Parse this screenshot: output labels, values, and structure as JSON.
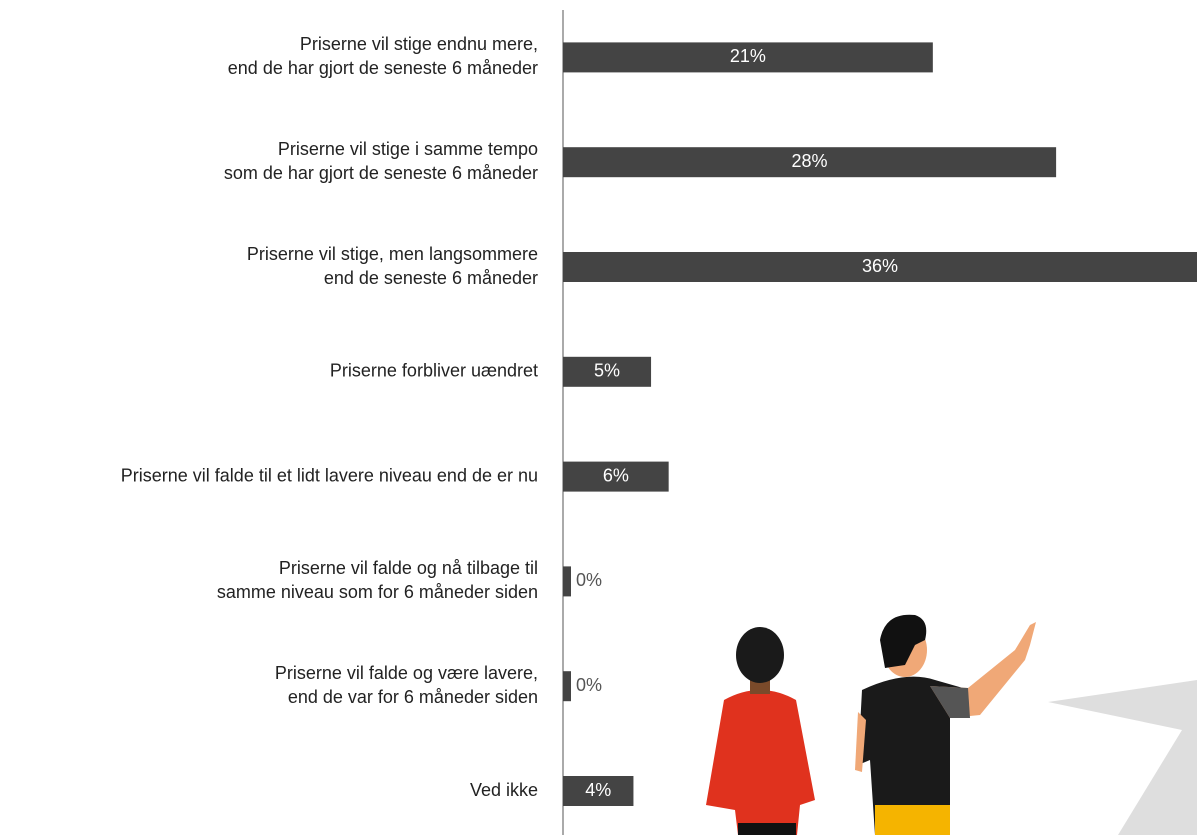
{
  "chart_data": {
    "type": "bar",
    "orientation": "horizontal",
    "categories": [
      [
        "Priserne vil stige endnu mere,",
        "end de har gjort de seneste 6 måneder"
      ],
      [
        "Priserne vil stige i samme tempo",
        "som de har gjort de seneste 6 måneder"
      ],
      [
        "Priserne vil stige, men langsommere",
        "end de seneste 6 måneder"
      ],
      [
        "Priserne forbliver uændret"
      ],
      [
        "Priserne vil falde til et lidt lavere niveau end de er nu"
      ],
      [
        "Priserne vil falde og nå tilbage til",
        "samme niveau som for 6 måneder siden"
      ],
      [
        "Priserne vil falde og være lavere,",
        "end de var for 6 måneder siden"
      ],
      [
        "Ved ikke"
      ]
    ],
    "values": [
      21,
      28,
      36,
      5,
      6,
      0,
      0,
      4
    ],
    "value_labels": [
      "21%",
      "28%",
      "36%",
      "5%",
      "6%",
      "0%",
      "0%",
      "4%"
    ],
    "color": "#444444",
    "xlim": [
      0,
      36
    ]
  }
}
